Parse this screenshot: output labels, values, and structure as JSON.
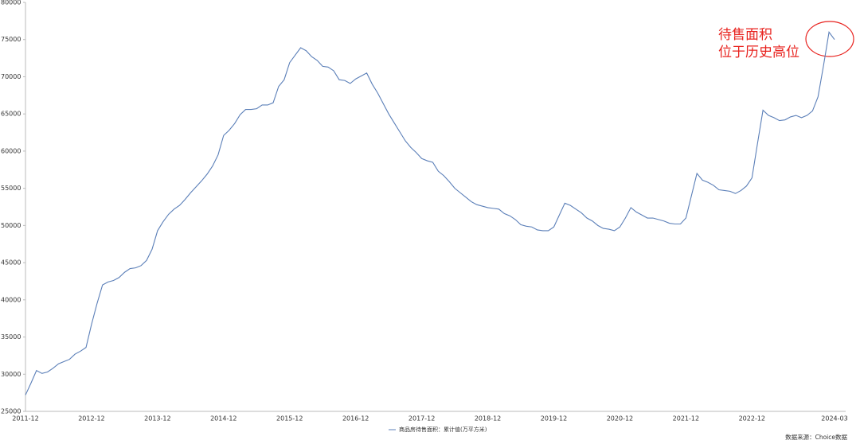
{
  "chart_data": {
    "type": "line",
    "categories": [
      "2011-12",
      null,
      null,
      null,
      null,
      null,
      null,
      null,
      null,
      null,
      null,
      null,
      "2012-12",
      null,
      null,
      null,
      null,
      null,
      null,
      null,
      null,
      null,
      null,
      null,
      "2013-12",
      null,
      null,
      null,
      null,
      null,
      null,
      null,
      null,
      null,
      null,
      null,
      "2014-12",
      null,
      null,
      null,
      null,
      null,
      null,
      null,
      null,
      null,
      null,
      null,
      "2015-12",
      null,
      null,
      null,
      null,
      null,
      null,
      null,
      null,
      null,
      null,
      null,
      "2016-12",
      null,
      null,
      null,
      null,
      null,
      null,
      null,
      null,
      null,
      null,
      null,
      "2017-12",
      null,
      null,
      null,
      null,
      null,
      null,
      null,
      null,
      null,
      null,
      null,
      "2018-12",
      null,
      null,
      null,
      null,
      null,
      null,
      null,
      null,
      null,
      null,
      null,
      "2019-12",
      null,
      null,
      null,
      null,
      null,
      null,
      null,
      null,
      null,
      null,
      null,
      "2020-12",
      null,
      null,
      null,
      null,
      null,
      null,
      null,
      null,
      null,
      null,
      null,
      "2021-12",
      null,
      null,
      null,
      null,
      null,
      null,
      null,
      null,
      null,
      null,
      null,
      "2022-12",
      null,
      null,
      null,
      null,
      null,
      null,
      null,
      null,
      null,
      null,
      null,
      null,
      null,
      null,
      "2024-03"
    ],
    "series": [
      {
        "name": "商品房待售面积：累计值(万平方米)",
        "color": "#5b7fb8",
        "values": [
          27200,
          28800,
          30500,
          30100,
          30300,
          30800,
          31400,
          31700,
          32000,
          32700,
          33100,
          33600,
          36700,
          39500,
          42000,
          42400,
          42600,
          43000,
          43700,
          44200,
          44300,
          44600,
          45300,
          46800,
          49300,
          50500,
          51500,
          52200,
          52700,
          53500,
          54400,
          55200,
          56000,
          56900,
          58000,
          59500,
          62100,
          62800,
          63700,
          64900,
          65600,
          65600,
          65700,
          66200,
          66200,
          66500,
          68700,
          69600,
          71900,
          72900,
          73900,
          73500,
          72700,
          72200,
          71400,
          71300,
          70800,
          69600,
          69500,
          69100,
          69700,
          70100,
          70500,
          69000,
          67800,
          66400,
          65000,
          63800,
          62600,
          61400,
          60500,
          59800,
          59000,
          58700,
          58500,
          57300,
          56700,
          55900,
          55000,
          54400,
          53800,
          53200,
          52800,
          52600,
          52400,
          52300,
          52200,
          51600,
          51300,
          50800,
          50100,
          49900,
          49800,
          49400,
          49300,
          49300,
          49800,
          51400,
          53000,
          52700,
          52200,
          51700,
          51000,
          50600,
          50000,
          49600,
          49500,
          49300,
          49800,
          51000,
          52400,
          51800,
          51400,
          51000,
          51000,
          50800,
          50600,
          50300,
          50200,
          50200,
          51000,
          54000,
          57000,
          56100,
          55800,
          55400,
          54800,
          54700,
          54600,
          54300,
          54700,
          55300,
          56400,
          61000,
          65500,
          64800,
          64500,
          64100,
          64200,
          64600,
          64800,
          64500,
          64800,
          65400,
          67300,
          71500,
          76000,
          75000
        ]
      }
    ],
    "ylim": [
      25000,
      80000
    ],
    "yticks": [
      25000,
      30000,
      35000,
      40000,
      45000,
      50000,
      55000,
      60000,
      65000,
      70000,
      75000,
      80000
    ],
    "annotations": [
      "待售面积",
      "位于历史高位"
    ],
    "source": "数据来源：Choice数据"
  }
}
